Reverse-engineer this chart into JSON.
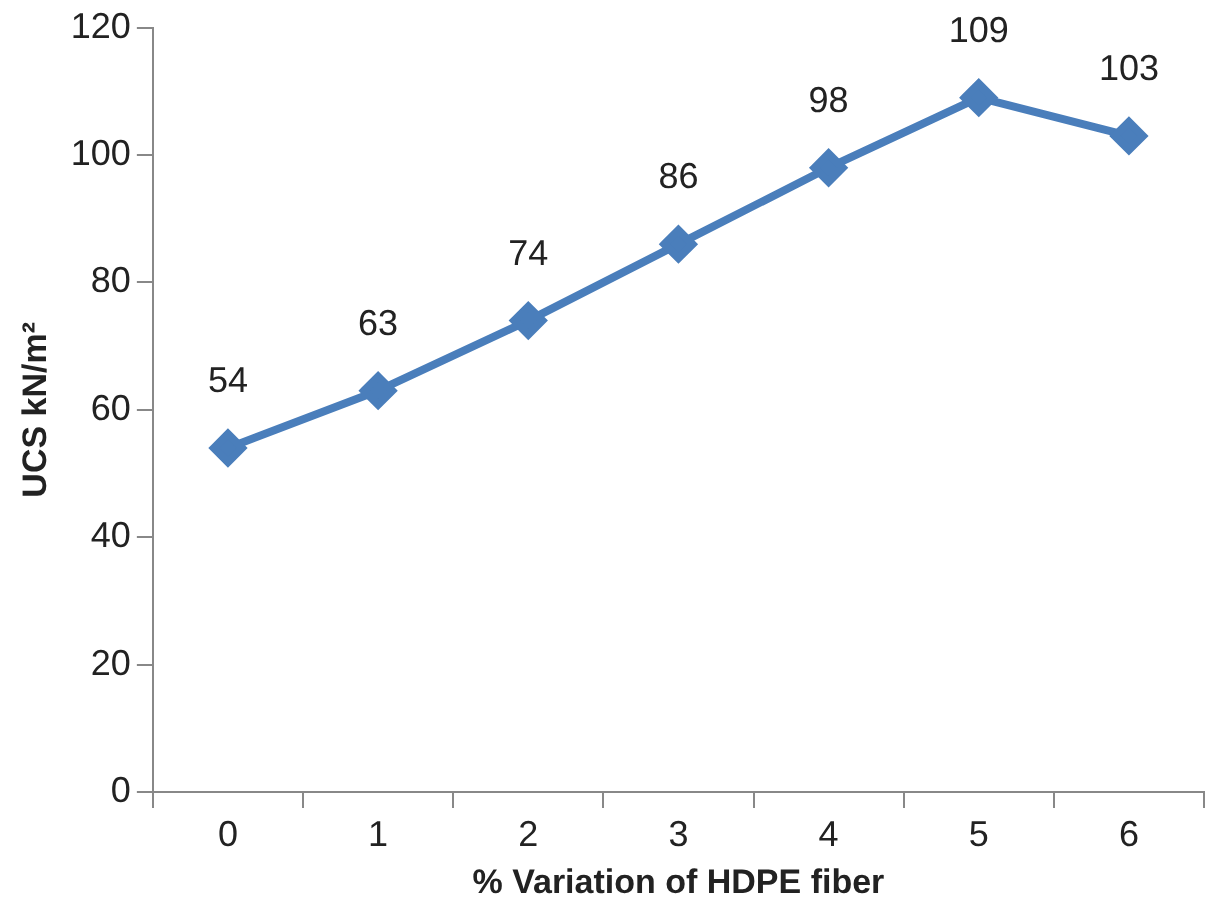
{
  "chart_data": {
    "type": "line",
    "xlabel": "% Variation of HDPE fiber",
    "ylabel": "UCS kN/m²",
    "categories": [
      "0",
      "1",
      "2",
      "3",
      "4",
      "5",
      "6"
    ],
    "series": [
      {
        "color": "#4a7ebb",
        "values": [
          54,
          63,
          74,
          86,
          98,
          109,
          103
        ]
      }
    ],
    "ylim": [
      0,
      120
    ],
    "yticks": [
      0,
      20,
      40,
      60,
      80,
      100,
      120
    ],
    "grid": false,
    "legend": false,
    "marker": "diamond",
    "line_style": "solid",
    "data_labels": true
  }
}
